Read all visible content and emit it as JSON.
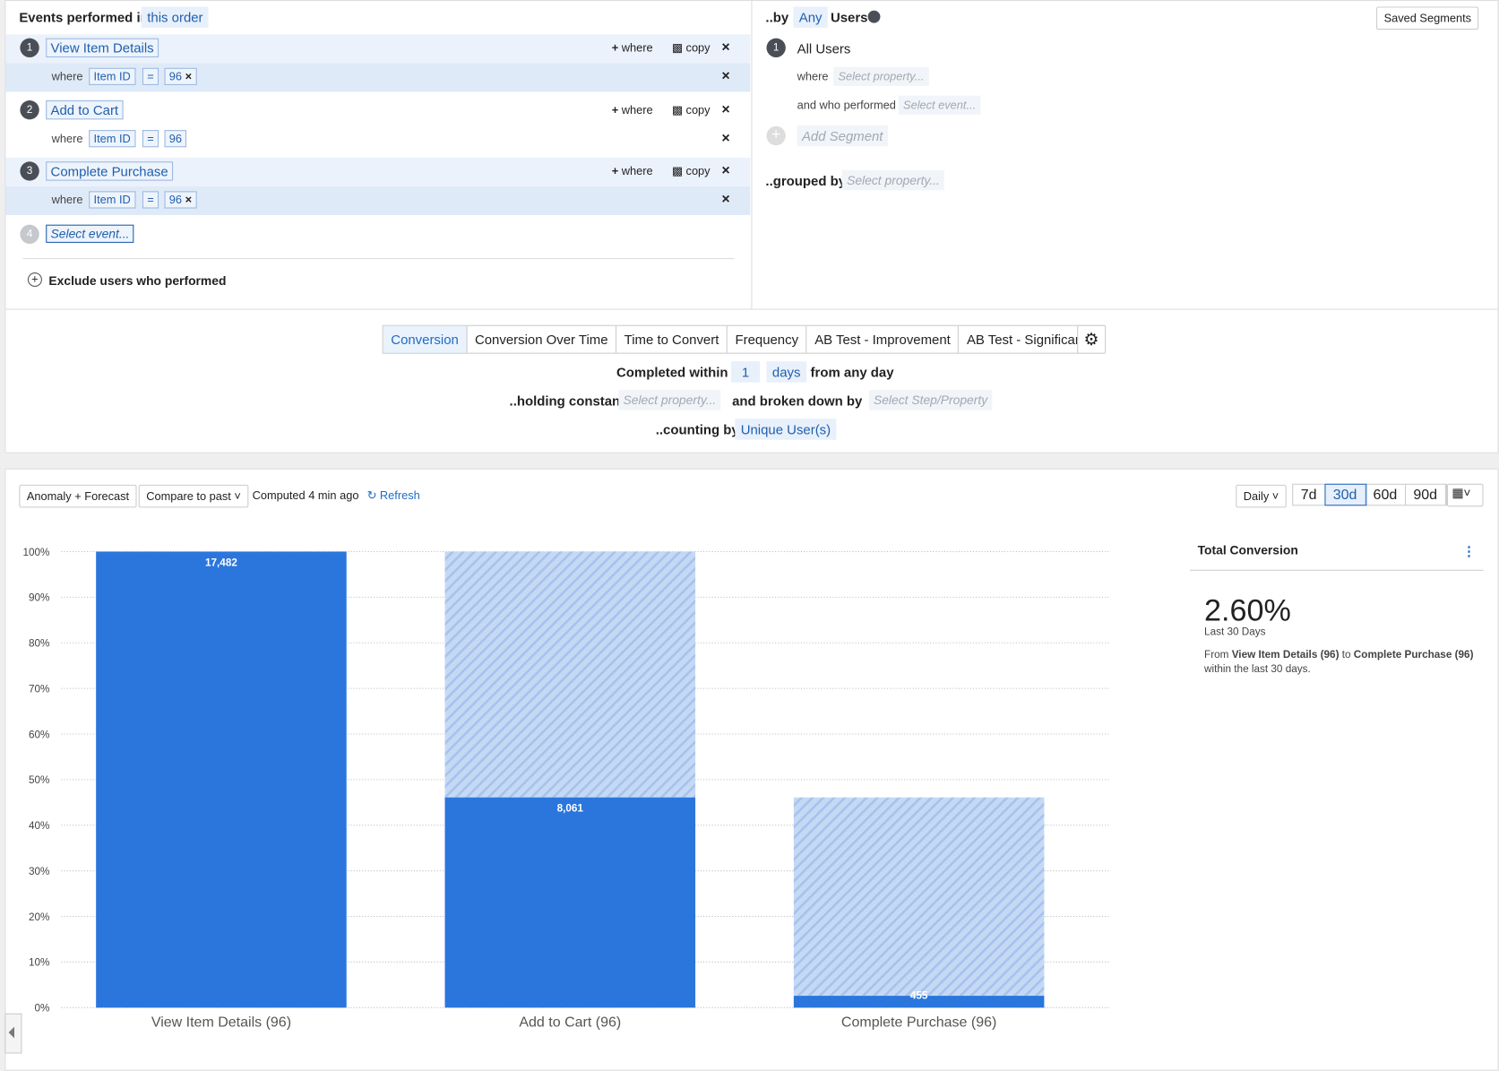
{
  "events_panel": {
    "heading": "Events performed in",
    "order": "this order",
    "where_label": "where",
    "add_where": "where",
    "copy": "copy",
    "steps": [
      {
        "number": 1,
        "event": "View Item Details",
        "property": "Item ID",
        "operator": "=",
        "value": "96",
        "highlighted": true
      },
      {
        "number": 2,
        "event": "Add to Cart",
        "property": "Item ID",
        "operator": "=",
        "value": "96",
        "highlighted": false
      },
      {
        "number": 3,
        "event": "Complete Purchase",
        "property": "Item ID",
        "operator": "=",
        "value": "96",
        "highlighted": true
      }
    ],
    "next_step": {
      "number": 4,
      "placeholder": "Select event..."
    },
    "exclude": "Exclude users who performed"
  },
  "segments_panel": {
    "by": "..by",
    "any": "Any",
    "users": "Users",
    "saved": "Saved Segments",
    "segment_number": 1,
    "segment_name": "All Users",
    "where": "where",
    "where_placeholder": "Select property...",
    "performed": "and who performed",
    "performed_placeholder": "Select event...",
    "add_segment": "Add Segment",
    "grouped_by": "..grouped by",
    "grouped_placeholder": "Select property..."
  },
  "settings": {
    "tabs": [
      "Conversion",
      "Conversion Over Time",
      "Time to Convert",
      "Frequency",
      "AB Test - Improvement",
      "AB Test - Significance"
    ],
    "active_tab": 0,
    "completed_within": "Completed within",
    "within_value": 1,
    "within_unit": "days",
    "from": "from any day",
    "holding": "..holding constant",
    "holding_placeholder": "Select property...",
    "broken": "and broken down by",
    "broken_placeholder": "Select Step/Property",
    "counting": "..counting by",
    "counting_value": "Unique User(s)"
  },
  "toolbar": {
    "anomaly": "Anomaly + Forecast",
    "compare": "Compare to past",
    "computed": "Computed 4 min ago",
    "refresh": "Refresh",
    "interval": "Daily",
    "ranges": [
      "7d",
      "30d",
      "60d",
      "90d"
    ],
    "active_range": 1
  },
  "chart_data": {
    "type": "bar",
    "categories": [
      "View Item Details (96)",
      "Add to Cart (96)",
      "Complete Purchase (96)"
    ],
    "values": [
      100,
      46.1,
      2.6
    ],
    "bar_labels": [
      "17,482",
      "8,061",
      "455"
    ],
    "color": "#2a76dd",
    "dropoff_color": "#c6d9f4",
    "ylim": [
      0,
      100
    ],
    "yticks": [
      {
        "value": 0,
        "label": "0%"
      },
      {
        "value": 10,
        "label": "10%"
      },
      {
        "value": 20,
        "label": "20%"
      },
      {
        "value": 30,
        "label": "30%"
      },
      {
        "value": 40,
        "label": "40%"
      },
      {
        "value": 50,
        "label": "50%"
      },
      {
        "value": 60,
        "label": "60%"
      },
      {
        "value": 70,
        "label": "70%"
      },
      {
        "value": 80,
        "label": "80%"
      },
      {
        "value": 90,
        "label": "90%"
      },
      {
        "value": 100,
        "label": "100%"
      }
    ],
    "grid": true
  },
  "summary": {
    "title": "Total Conversion",
    "value": "2.60%",
    "period": "Last 30 Days",
    "from": "From",
    "start": "View Item Details (96)",
    "to": "to",
    "end": "Complete Purchase (96)",
    "within": "within the last 30 days."
  }
}
